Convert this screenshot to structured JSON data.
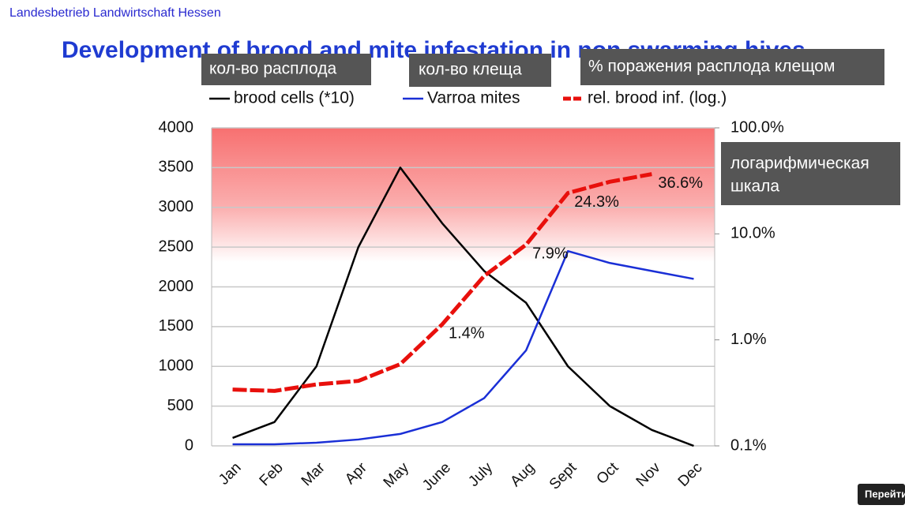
{
  "header": "Landesbetrieb Landwirtschaft Hessen",
  "button": "Перейти",
  "chart_data": {
    "type": "line",
    "title": "Development of brood and mite infestation in non swarming hives",
    "annotations": [
      "кол-во расплода",
      "кол-во клеща",
      "% поражения расплода клещом",
      "логарифмическая",
      "шкала"
    ],
    "categories": [
      "Jan",
      "Feb",
      "Mar",
      "Apr",
      "May",
      "June",
      "July",
      "Aug",
      "Sept",
      "Oct",
      "Nov",
      "Dec"
    ],
    "series": [
      {
        "name": "brood cells (*10)",
        "color": "#000000",
        "values": [
          100,
          300,
          1000,
          2500,
          3500,
          2800,
          2200,
          1800,
          1000,
          500,
          200,
          0
        ]
      },
      {
        "name": "Varroa mites",
        "color": "#1a2fd6",
        "values": [
          20,
          20,
          40,
          80,
          150,
          300,
          600,
          1200,
          2450,
          2300,
          2200,
          2100
        ]
      },
      {
        "name": "rel. brood inf. (log.)",
        "color": "#e8100c",
        "axis": "y2",
        "dashed": true,
        "values": [
          0.34,
          0.33,
          0.38,
          0.41,
          0.59,
          1.4,
          4.0,
          7.9,
          24.3,
          31,
          36.6,
          null
        ],
        "value_labels": [
          null,
          null,
          null,
          null,
          null,
          "1.4%",
          null,
          "7.9%",
          "24.3%",
          null,
          "36.6%",
          null
        ]
      }
    ],
    "ylim": [
      0,
      4000
    ],
    "yticks": [
      0,
      500,
      1000,
      1500,
      2000,
      2500,
      3000,
      3500,
      4000
    ],
    "y2lim": [
      0.1,
      100
    ],
    "y2log": true,
    "y2ticks": [
      {
        "value": 0.1,
        "label": "0.1%"
      },
      {
        "value": 1,
        "label": "1.0%"
      },
      {
        "value": 10,
        "label": "10.0%"
      },
      {
        "value": 100,
        "label": "100.0%"
      }
    ],
    "grid": true,
    "legend": "top"
  }
}
